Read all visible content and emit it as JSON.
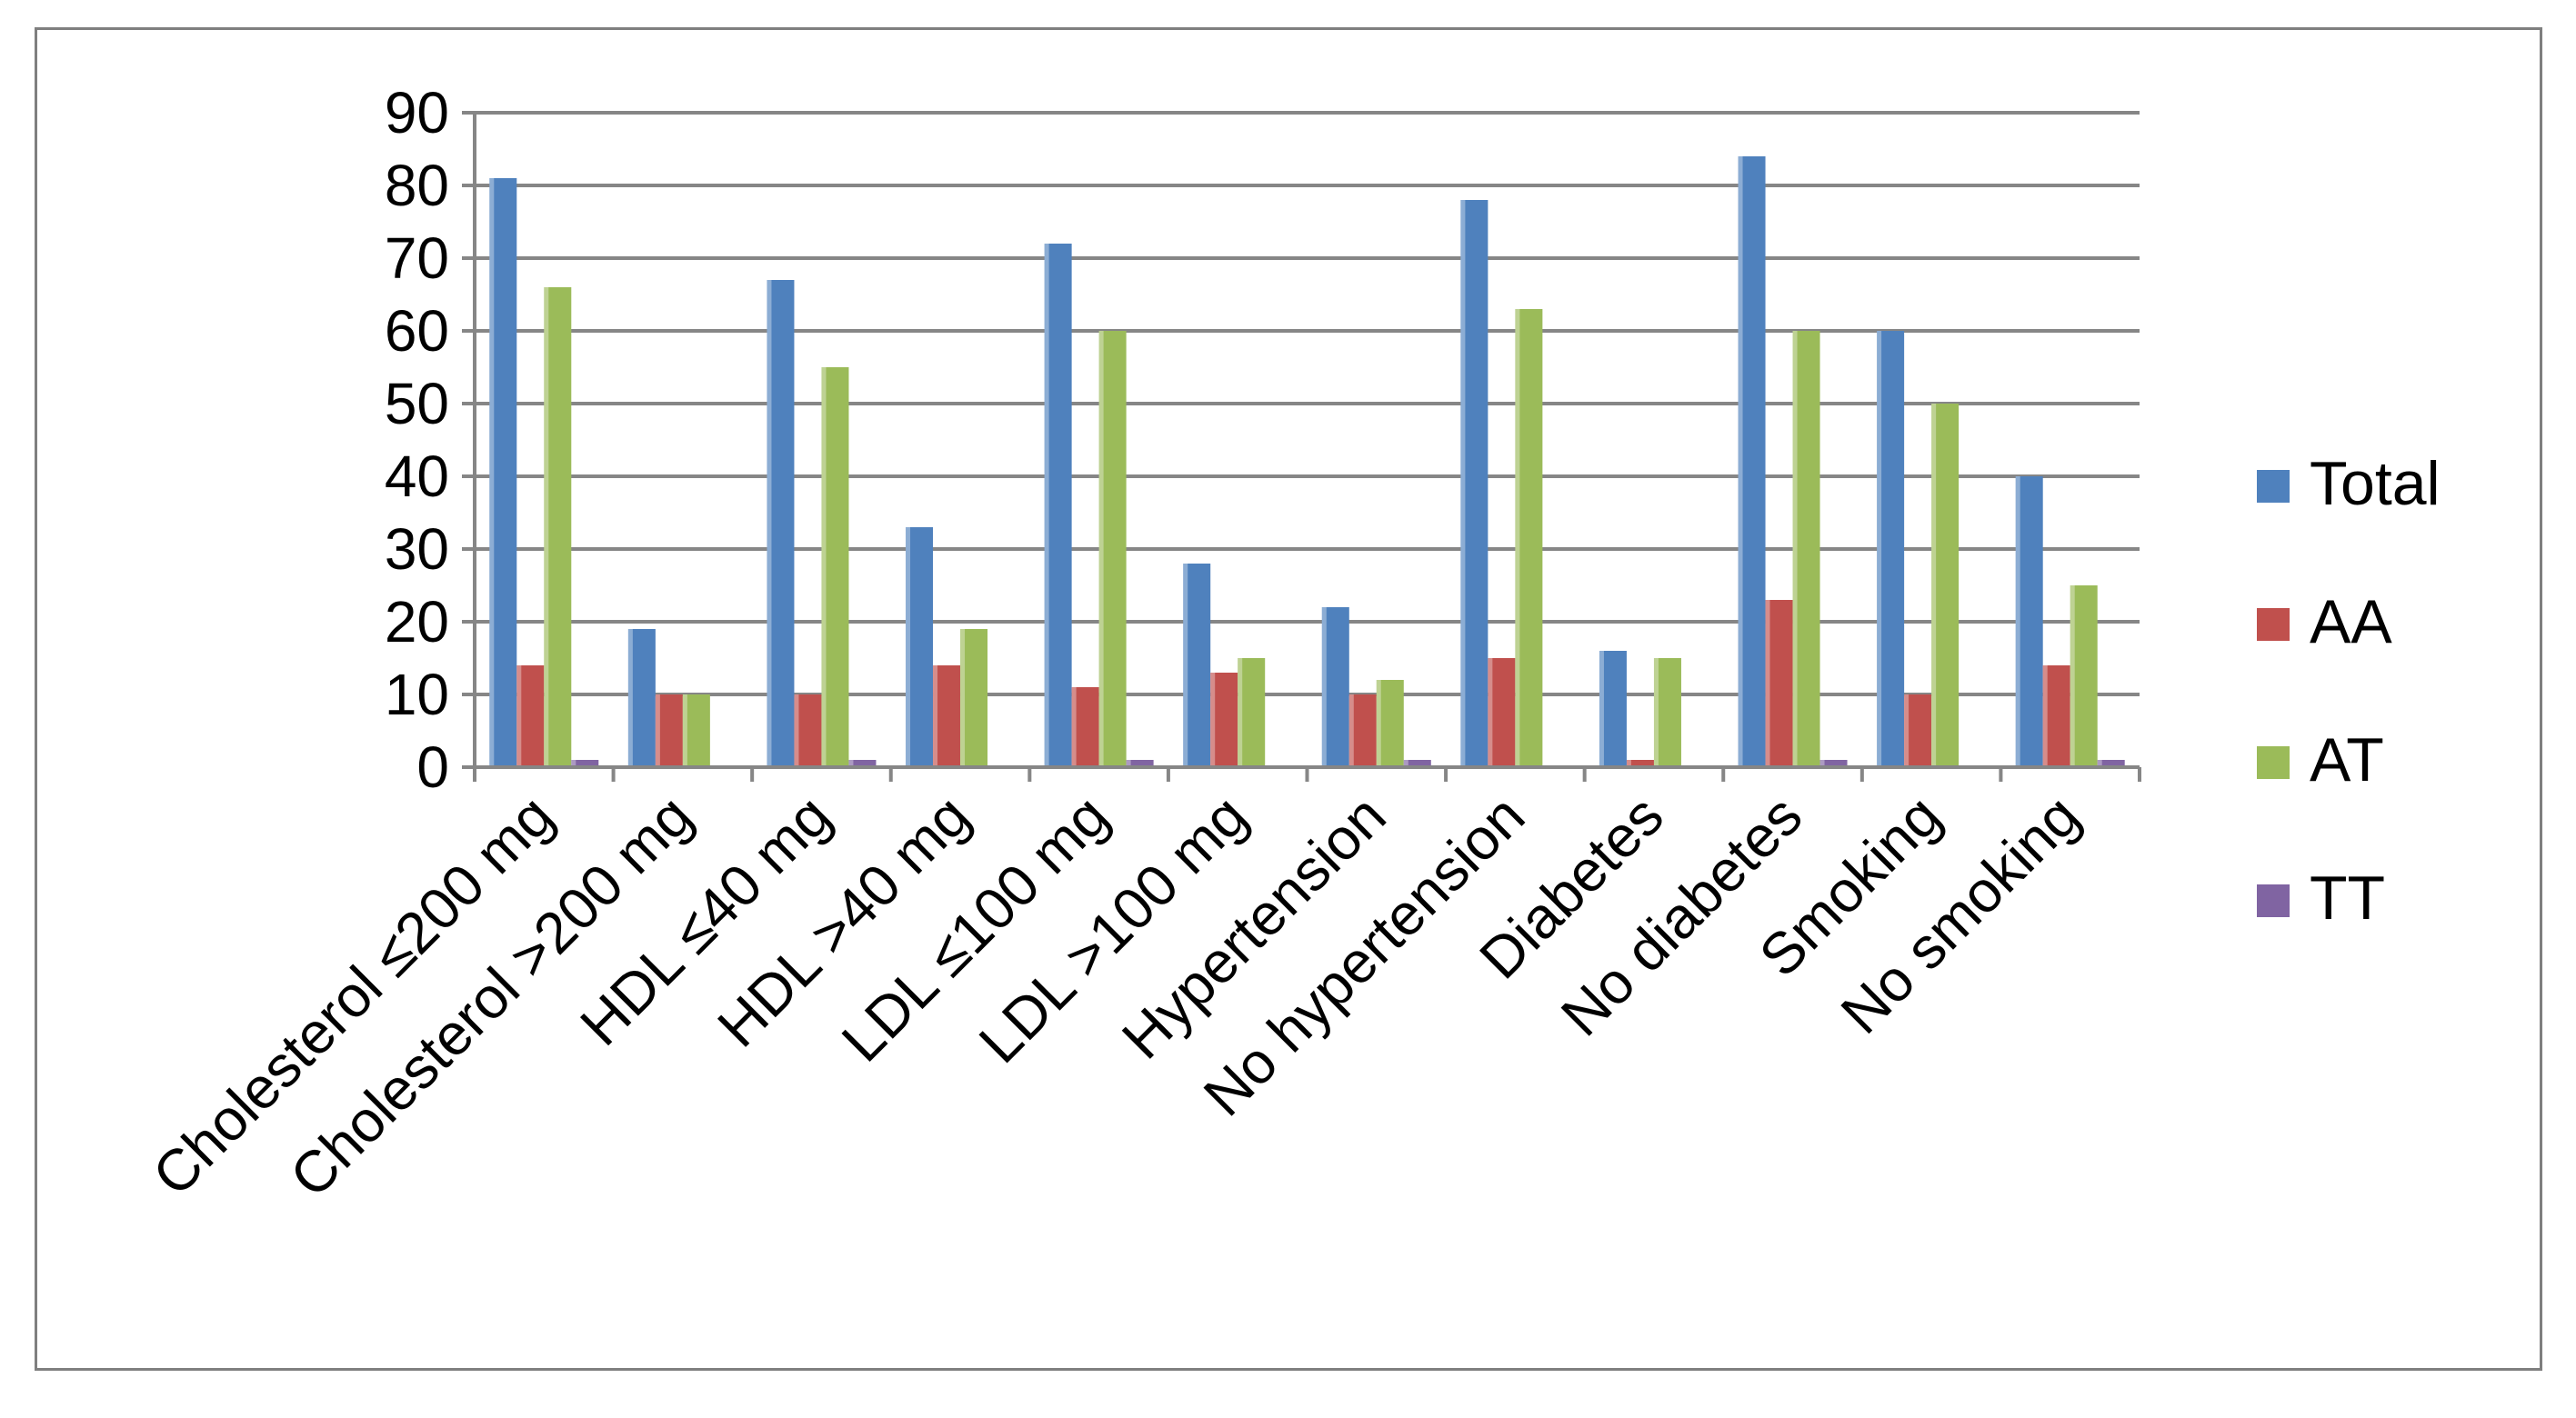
{
  "chart_data": {
    "type": "bar",
    "title": "",
    "xlabel": "",
    "ylabel": "",
    "ylim": [
      0,
      90
    ],
    "yticks": [
      0,
      10,
      20,
      30,
      40,
      50,
      60,
      70,
      80,
      90
    ],
    "grid": true,
    "legend_position": "right",
    "categories": [
      "Cholesterol ≤200 mg",
      "Cholesterol >200 mg",
      "HDL ≤40 mg",
      "HDL >40 mg",
      "LDL ≤100 mg",
      "LDL >100 mg",
      "Hypertension",
      "No hypertension",
      "Diabetes",
      "No diabetes",
      "Smoking",
      "No smoking"
    ],
    "series": [
      {
        "name": "Total",
        "color": "#4f81bd",
        "values": [
          81,
          19,
          67,
          33,
          72,
          28,
          22,
          78,
          16,
          84,
          60,
          40
        ]
      },
      {
        "name": "AA",
        "color": "#c0504d",
        "values": [
          14,
          10,
          10,
          14,
          11,
          13,
          10,
          15,
          1,
          23,
          10,
          14
        ]
      },
      {
        "name": "AT",
        "color": "#9bbb59",
        "values": [
          66,
          10,
          55,
          19,
          60,
          15,
          12,
          63,
          15,
          60,
          50,
          25
        ]
      },
      {
        "name": "TT",
        "color": "#8064a2",
        "values": [
          1,
          0,
          1,
          0,
          1,
          0,
          1,
          0,
          0,
          1,
          0,
          1
        ]
      }
    ]
  }
}
